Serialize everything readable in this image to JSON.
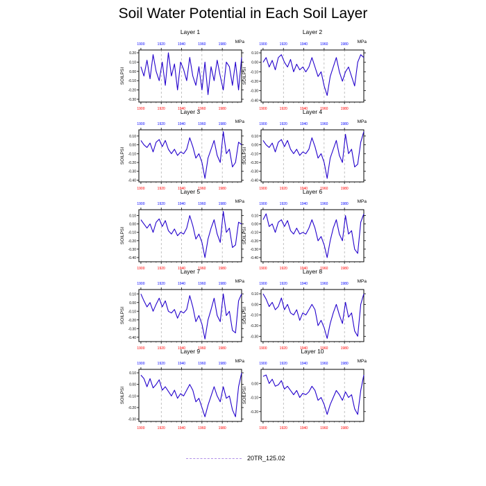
{
  "title": "Soil Water Potential in Each Soil Layer",
  "legend": {
    "label": "20TR_125.02",
    "color": "#b08ee8"
  },
  "colors": {
    "series": "#2200cc",
    "bottom_ticks": "#ff0000",
    "top_ticks": "#0000ff",
    "ref_line": "#999999"
  },
  "chart_data": [
    {
      "type": "line",
      "title": "Layer 1",
      "ylabel": "SOILPSI",
      "units": "MPa",
      "yticks": [
        0.2,
        0.1,
        0.0,
        -0.1,
        -0.2,
        -0.3
      ],
      "ylim": [
        -0.33,
        0.23
      ],
      "xlim": [
        1898,
        1999
      ],
      "xticks": [
        1900,
        1920,
        1940,
        1960,
        1980
      ],
      "xlabels": [
        "1900",
        "1920",
        "1940",
        "1960",
        "1980"
      ],
      "toplabels": [
        "1900",
        "1920",
        "1940",
        "1960",
        "1980"
      ],
      "x": [
        1900,
        1903,
        1906,
        1909,
        1912,
        1915,
        1918,
        1921,
        1924,
        1927,
        1930,
        1933,
        1936,
        1939,
        1942,
        1945,
        1948,
        1951,
        1954,
        1957,
        1960,
        1963,
        1966,
        1969,
        1972,
        1975,
        1978,
        1981,
        1984,
        1987,
        1990,
        1993,
        1996,
        1999
      ],
      "values": [
        0.05,
        -0.05,
        0.12,
        -0.08,
        0.18,
        0.0,
        -0.1,
        0.1,
        -0.15,
        0.2,
        -0.05,
        0.08,
        -0.2,
        0.1,
        0.02,
        -0.1,
        0.15,
        -0.05,
        -0.15,
        0.05,
        -0.2,
        0.1,
        -0.25,
        0.05,
        -0.1,
        0.12,
        -0.05,
        -0.2,
        0.1,
        0.05,
        -0.15,
        0.1,
        -0.2,
        0.15
      ]
    },
    {
      "type": "line",
      "title": "Layer 2",
      "ylabel": "",
      "units": "MPa",
      "yticks": [
        0.1,
        0.0,
        -0.1,
        -0.2,
        -0.3,
        -0.4
      ],
      "ylim": [
        -0.42,
        0.13
      ],
      "xlim": [
        1898,
        1999
      ],
      "xticks": [
        1900,
        1920,
        1940,
        1960,
        1980
      ],
      "xlabels": [
        "1900",
        "1920",
        "1940",
        "1960",
        "1980"
      ],
      "toplabels": [
        "1900",
        "1920",
        "1940",
        "1960",
        "1980"
      ],
      "x": [
        1900,
        1903,
        1906,
        1909,
        1912,
        1915,
        1918,
        1921,
        1924,
        1927,
        1930,
        1933,
        1936,
        1939,
        1942,
        1945,
        1948,
        1951,
        1954,
        1957,
        1960,
        1963,
        1966,
        1969,
        1972,
        1975,
        1978,
        1981,
        1984,
        1987,
        1990,
        1993,
        1996,
        1999
      ],
      "values": [
        0.0,
        0.05,
        -0.05,
        0.02,
        -0.08,
        0.05,
        0.08,
        0.0,
        -0.05,
        0.03,
        -0.1,
        -0.02,
        -0.08,
        -0.05,
        -0.1,
        -0.05,
        0.05,
        -0.05,
        -0.15,
        -0.1,
        -0.25,
        -0.35,
        -0.15,
        -0.05,
        0.05,
        -0.1,
        -0.2,
        -0.1,
        -0.05,
        -0.15,
        -0.25,
        0.0,
        0.08,
        0.05
      ]
    },
    {
      "type": "line",
      "title": "Layer 3",
      "ylabel": "SOILPSI",
      "units": "MPa",
      "yticks": [
        0.1,
        0.0,
        -0.1,
        -0.2,
        -0.3,
        -0.4
      ],
      "ylim": [
        -0.42,
        0.17
      ],
      "xlim": [
        1898,
        1999
      ],
      "xticks": [
        1900,
        1920,
        1940,
        1960,
        1980
      ],
      "xlabels": [
        "1900",
        "1920",
        "1940",
        "1960",
        "1980"
      ],
      "toplabels": [
        "1900",
        "1920",
        "1940",
        "1960",
        "1980"
      ],
      "x": [
        1900,
        1903,
        1906,
        1909,
        1912,
        1915,
        1918,
        1921,
        1924,
        1927,
        1930,
        1933,
        1936,
        1939,
        1942,
        1945,
        1948,
        1951,
        1954,
        1957,
        1960,
        1963,
        1966,
        1969,
        1972,
        1975,
        1978,
        1981,
        1984,
        1987,
        1990,
        1993,
        1996,
        1999
      ],
      "values": [
        0.05,
        0.0,
        -0.03,
        0.02,
        -0.08,
        0.03,
        0.06,
        -0.02,
        0.05,
        -0.05,
        -0.1,
        -0.05,
        -0.12,
        -0.08,
        -0.1,
        -0.05,
        0.08,
        -0.02,
        -0.15,
        -0.1,
        -0.2,
        -0.38,
        -0.15,
        -0.05,
        0.05,
        -0.12,
        -0.2,
        0.15,
        -0.1,
        -0.05,
        -0.25,
        -0.2,
        0.03,
        0.0
      ]
    },
    {
      "type": "line",
      "title": "Layer 4",
      "ylabel": "",
      "units": "MPa",
      "yticks": [
        0.1,
        0.0,
        -0.1,
        -0.2,
        -0.3,
        -0.4
      ],
      "ylim": [
        -0.42,
        0.17
      ],
      "xlim": [
        1898,
        1999
      ],
      "xticks": [
        1900,
        1920,
        1940,
        1960,
        1980
      ],
      "xlabels": [
        "1900",
        "1920",
        "1940",
        "1960",
        "1980"
      ],
      "toplabels": [
        "1900",
        "1920",
        "1940",
        "1960",
        "1980"
      ],
      "x": [
        1900,
        1903,
        1906,
        1909,
        1912,
        1915,
        1918,
        1921,
        1924,
        1927,
        1930,
        1933,
        1936,
        1939,
        1942,
        1945,
        1948,
        1951,
        1954,
        1957,
        1960,
        1963,
        1966,
        1969,
        1972,
        1975,
        1978,
        1981,
        1984,
        1987,
        1990,
        1993,
        1996,
        1999
      ],
      "values": [
        0.05,
        0.0,
        -0.03,
        0.02,
        -0.08,
        0.03,
        0.06,
        -0.02,
        0.05,
        -0.05,
        -0.1,
        -0.05,
        -0.12,
        -0.08,
        -0.1,
        -0.05,
        0.08,
        -0.02,
        -0.15,
        -0.1,
        -0.2,
        -0.38,
        -0.15,
        -0.05,
        0.05,
        -0.12,
        -0.2,
        0.12,
        -0.1,
        -0.05,
        -0.25,
        -0.22,
        0.03,
        0.15
      ]
    },
    {
      "type": "line",
      "title": "Layer 5",
      "ylabel": "SOILPSI",
      "units": "MPa",
      "yticks": [
        0.1,
        0.0,
        -0.1,
        -0.2,
        -0.3,
        -0.4
      ],
      "ylim": [
        -0.45,
        0.17
      ],
      "xlim": [
        1898,
        1999
      ],
      "xticks": [
        1900,
        1920,
        1940,
        1960,
        1980
      ],
      "xlabels": [
        "1900",
        "1920",
        "1940",
        "1960",
        "1980"
      ],
      "toplabels": [
        "1900",
        "1920",
        "1940",
        "1960",
        "1980"
      ],
      "x": [
        1900,
        1903,
        1906,
        1909,
        1912,
        1915,
        1918,
        1921,
        1924,
        1927,
        1930,
        1933,
        1936,
        1939,
        1942,
        1945,
        1948,
        1951,
        1954,
        1957,
        1960,
        1963,
        1966,
        1969,
        1972,
        1975,
        1978,
        1981,
        1984,
        1987,
        1990,
        1993,
        1996,
        1999
      ],
      "values": [
        0.05,
        0.0,
        -0.05,
        0.0,
        -0.1,
        0.02,
        0.06,
        -0.03,
        0.04,
        -0.08,
        -0.12,
        -0.06,
        -0.14,
        -0.1,
        -0.12,
        -0.05,
        0.1,
        -0.02,
        -0.18,
        -0.12,
        -0.22,
        -0.4,
        -0.18,
        -0.05,
        0.05,
        -0.12,
        -0.22,
        0.15,
        -0.1,
        -0.05,
        -0.28,
        -0.25,
        0.02,
        0.0
      ]
    },
    {
      "type": "line",
      "title": "Layer 6",
      "ylabel": "",
      "units": "MPa",
      "yticks": [
        0.1,
        0.0,
        -0.1,
        -0.2,
        -0.3,
        -0.4
      ],
      "ylim": [
        -0.45,
        0.17
      ],
      "xlim": [
        1898,
        1999
      ],
      "xticks": [
        1900,
        1920,
        1940,
        1960,
        1980
      ],
      "xlabels": [
        "1900",
        "1920",
        "1940",
        "1960",
        "1980"
      ],
      "toplabels": [
        "1900",
        "1920",
        "1940",
        "1960",
        "1980"
      ],
      "x": [
        1900,
        1903,
        1906,
        1909,
        1912,
        1915,
        1918,
        1921,
        1924,
        1927,
        1930,
        1933,
        1936,
        1939,
        1942,
        1945,
        1948,
        1951,
        1954,
        1957,
        1960,
        1963,
        1966,
        1969,
        1972,
        1975,
        1978,
        1981,
        1984,
        1987,
        1990,
        1993,
        1996,
        1999
      ],
      "values": [
        0.05,
        0.12,
        -0.03,
        0.0,
        -0.1,
        0.02,
        0.05,
        -0.03,
        0.04,
        -0.08,
        -0.12,
        -0.05,
        -0.12,
        -0.1,
        -0.12,
        -0.05,
        0.05,
        -0.05,
        -0.2,
        -0.15,
        -0.25,
        -0.4,
        -0.2,
        -0.05,
        0.05,
        -0.12,
        -0.2,
        0.1,
        -0.12,
        -0.08,
        -0.3,
        -0.35,
        0.02,
        0.12
      ]
    },
    {
      "type": "line",
      "title": "Layer 7",
      "ylabel": "SOILPSI",
      "units": "MPa",
      "yticks": [
        0.1,
        0.0,
        -0.1,
        -0.2,
        -0.3,
        -0.4
      ],
      "ylim": [
        -0.45,
        0.15
      ],
      "xlim": [
        1898,
        1999
      ],
      "xticks": [
        1900,
        1920,
        1940,
        1960,
        1980
      ],
      "xlabels": [
        "1900",
        "1920",
        "1940",
        "1960",
        "1980"
      ],
      "toplabels": [
        "1900",
        "1920",
        "1940",
        "1960",
        "1980"
      ],
      "x": [
        1900,
        1903,
        1906,
        1909,
        1912,
        1915,
        1918,
        1921,
        1924,
        1927,
        1930,
        1933,
        1936,
        1939,
        1942,
        1945,
        1948,
        1951,
        1954,
        1957,
        1960,
        1963,
        1966,
        1969,
        1972,
        1975,
        1978,
        1981,
        1984,
        1987,
        1990,
        1993,
        1996,
        1999
      ],
      "values": [
        0.1,
        0.02,
        -0.05,
        0.0,
        -0.1,
        -0.02,
        0.05,
        -0.05,
        0.02,
        -0.1,
        -0.12,
        -0.08,
        -0.18,
        -0.1,
        -0.12,
        -0.08,
        0.08,
        -0.05,
        -0.22,
        -0.15,
        -0.25,
        -0.42,
        -0.2,
        -0.08,
        0.05,
        -0.15,
        -0.22,
        0.1,
        -0.15,
        -0.1,
        -0.32,
        -0.35,
        0.02,
        0.1
      ]
    },
    {
      "type": "line",
      "title": "Layer 8",
      "ylabel": "",
      "units": "MPa",
      "yticks": [
        0.1,
        0.0,
        -0.1,
        -0.2,
        -0.3
      ],
      "ylim": [
        -0.35,
        0.14
      ],
      "xlim": [
        1898,
        1999
      ],
      "xticks": [
        1900,
        1920,
        1940,
        1960,
        1980
      ],
      "xlabels": [
        "1900",
        "1920",
        "1940",
        "1960",
        "1980"
      ],
      "toplabels": [
        "1900",
        "1920",
        "1940",
        "1960",
        "1980"
      ],
      "x": [
        1900,
        1903,
        1906,
        1909,
        1912,
        1915,
        1918,
        1921,
        1924,
        1927,
        1930,
        1933,
        1936,
        1939,
        1942,
        1945,
        1948,
        1951,
        1954,
        1957,
        1960,
        1963,
        1966,
        1969,
        1972,
        1975,
        1978,
        1981,
        1984,
        1987,
        1990,
        1993,
        1996,
        1999
      ],
      "values": [
        0.1,
        0.05,
        -0.02,
        0.02,
        -0.05,
        -0.02,
        0.06,
        -0.05,
        0.0,
        -0.08,
        -0.1,
        -0.05,
        -0.15,
        -0.08,
        -0.1,
        -0.05,
        0.0,
        -0.05,
        -0.2,
        -0.15,
        -0.22,
        -0.32,
        -0.18,
        -0.08,
        0.0,
        -0.1,
        -0.18,
        0.02,
        -0.12,
        -0.08,
        -0.25,
        -0.3,
        0.0,
        0.1
      ]
    },
    {
      "type": "line",
      "title": "Layer 9",
      "ylabel": "SOILPSI",
      "units": "MPa",
      "yticks": [
        0.1,
        0.0,
        -0.1,
        -0.2,
        -0.3
      ],
      "ylim": [
        -0.32,
        0.13
      ],
      "xlim": [
        1898,
        1999
      ],
      "xticks": [
        1900,
        1920,
        1940,
        1960,
        1980
      ],
      "xlabels": [
        "1900",
        "1920",
        "1940",
        "1960",
        "1980"
      ],
      "toplabels": [
        "1900",
        "1920",
        "1940",
        "1960",
        "1980"
      ],
      "x": [
        1900,
        1903,
        1906,
        1909,
        1912,
        1915,
        1918,
        1921,
        1924,
        1927,
        1930,
        1933,
        1936,
        1939,
        1942,
        1945,
        1948,
        1951,
        1954,
        1957,
        1960,
        1963,
        1966,
        1969,
        1972,
        1975,
        1978,
        1981,
        1984,
        1987,
        1990,
        1993,
        1996,
        1999
      ],
      "values": [
        0.08,
        0.05,
        -0.02,
        0.05,
        -0.03,
        0.0,
        0.04,
        -0.05,
        -0.02,
        -0.06,
        -0.1,
        -0.05,
        -0.12,
        -0.08,
        -0.1,
        -0.05,
        0.0,
        -0.05,
        -0.15,
        -0.12,
        -0.2,
        -0.28,
        -0.18,
        -0.1,
        -0.02,
        -0.1,
        -0.15,
        -0.02,
        -0.12,
        -0.1,
        -0.22,
        -0.28,
        -0.02,
        0.1
      ]
    },
    {
      "type": "line",
      "title": "Layer 10",
      "ylabel": "SOILPSI",
      "units": "MPa",
      "yticks": [
        0.0,
        -0.1,
        -0.2
      ],
      "ylim": [
        -0.27,
        0.1
      ],
      "xlim": [
        1898,
        1999
      ],
      "xticks": [
        1900,
        1920,
        1940,
        1960,
        1980
      ],
      "xlabels": [
        "1900",
        "1920",
        "1940",
        "1960",
        "1980"
      ],
      "toplabels": [
        "1900",
        "1920",
        "1940",
        "1960",
        "1980"
      ],
      "x": [
        1900,
        1903,
        1906,
        1909,
        1912,
        1915,
        1918,
        1921,
        1924,
        1927,
        1930,
        1933,
        1936,
        1939,
        1942,
        1945,
        1948,
        1951,
        1954,
        1957,
        1960,
        1963,
        1966,
        1969,
        1972,
        1975,
        1978,
        1981,
        1984,
        1987,
        1990,
        1993,
        1996,
        1999
      ],
      "values": [
        0.05,
        0.06,
        0.0,
        0.03,
        -0.02,
        -0.01,
        0.02,
        -0.04,
        -0.02,
        -0.05,
        -0.08,
        -0.05,
        -0.1,
        -0.07,
        -0.08,
        -0.06,
        -0.02,
        -0.05,
        -0.12,
        -0.1,
        -0.15,
        -0.22,
        -0.15,
        -0.1,
        -0.05,
        -0.08,
        -0.12,
        -0.06,
        -0.1,
        -0.08,
        -0.18,
        -0.22,
        -0.05,
        0.06
      ]
    }
  ]
}
